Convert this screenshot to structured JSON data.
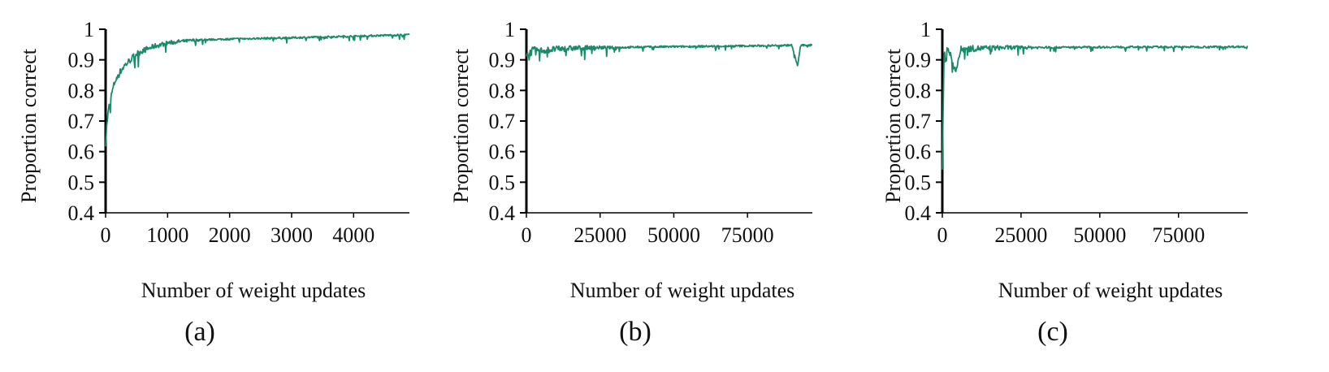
{
  "series_color": "#1a8a68",
  "panels": [
    {
      "caption": "(a)",
      "ylabel": "Proportion correct",
      "xlabel": "Number of weight updates"
    },
    {
      "caption": "(b)",
      "ylabel": "Proportion correct",
      "xlabel": "Number of weight updates"
    },
    {
      "caption": "(c)",
      "ylabel": "Proportion correct",
      "xlabel": "Number of weight updates"
    }
  ],
  "chart_data": [
    {
      "type": "line",
      "title": "",
      "xlabel": "Number of weight updates",
      "ylabel": "Proportion correct",
      "xlim": [
        0,
        4900
      ],
      "ylim": [
        0.4,
        1.0
      ],
      "xticks": [
        0,
        1000,
        2000,
        3000,
        4000
      ],
      "yticks": [
        0.4,
        0.5,
        0.6,
        0.7,
        0.8,
        0.9,
        1.0
      ],
      "ytick_labels": [
        "0.4",
        "0.5",
        "0.6",
        "0.7",
        "0.8",
        "0.9",
        "1"
      ],
      "grid": false,
      "series": [
        {
          "x": [
            0,
            25,
            50,
            100,
            150,
            200,
            300,
            400,
            500,
            600,
            800,
            1000,
            1200,
            1500,
            2000,
            2500,
            3000,
            3500,
            4000,
            4500,
            4900
          ],
          "y": [
            0.63,
            0.7,
            0.74,
            0.79,
            0.83,
            0.85,
            0.88,
            0.9,
            0.92,
            0.93,
            0.945,
            0.955,
            0.96,
            0.965,
            0.968,
            0.97,
            0.972,
            0.975,
            0.977,
            0.98,
            0.982
          ]
        }
      ]
    },
    {
      "type": "line",
      "title": "",
      "xlabel": "Number of weight updates",
      "ylabel": "Proportion correct",
      "xlim": [
        0,
        97000
      ],
      "ylim": [
        0.4,
        1.0
      ],
      "xticks": [
        0,
        25000,
        50000,
        75000
      ],
      "yticks": [
        0.4,
        0.5,
        0.6,
        0.7,
        0.8,
        0.9,
        1.0
      ],
      "ytick_labels": [
        "0.4",
        "0.5",
        "0.6",
        "0.7",
        "0.8",
        "0.9",
        "1"
      ],
      "grid": false,
      "series": [
        {
          "x": [
            0,
            500,
            1000,
            2000,
            5000,
            10000,
            20000,
            30000,
            40000,
            50000,
            60000,
            70000,
            80000,
            90000,
            92000,
            93000,
            97000
          ],
          "y": [
            0.9,
            0.93,
            0.92,
            0.93,
            0.93,
            0.935,
            0.94,
            0.94,
            0.942,
            0.943,
            0.944,
            0.945,
            0.946,
            0.948,
            0.88,
            0.947,
            0.948
          ]
        }
      ]
    },
    {
      "type": "line",
      "title": "",
      "xlabel": "Number of weight updates",
      "ylabel": "Proportion correct",
      "xlim": [
        0,
        97000
      ],
      "ylim": [
        0.4,
        1.0
      ],
      "xticks": [
        0,
        25000,
        50000,
        75000
      ],
      "yticks": [
        0.4,
        0.5,
        0.6,
        0.7,
        0.8,
        0.9,
        1.0
      ],
      "ytick_labels": [
        "0.4",
        "0.5",
        "0.6",
        "0.7",
        "0.8",
        "0.9",
        "1"
      ],
      "grid": false,
      "series": [
        {
          "x": [
            0,
            300,
            600,
            1000,
            1500,
            2500,
            4000,
            6000,
            10000,
            20000,
            40000,
            60000,
            80000,
            97000
          ],
          "y": [
            0.55,
            0.75,
            0.93,
            0.9,
            0.94,
            0.92,
            0.86,
            0.935,
            0.937,
            0.94,
            0.941,
            0.942,
            0.942,
            0.943
          ]
        }
      ]
    }
  ]
}
